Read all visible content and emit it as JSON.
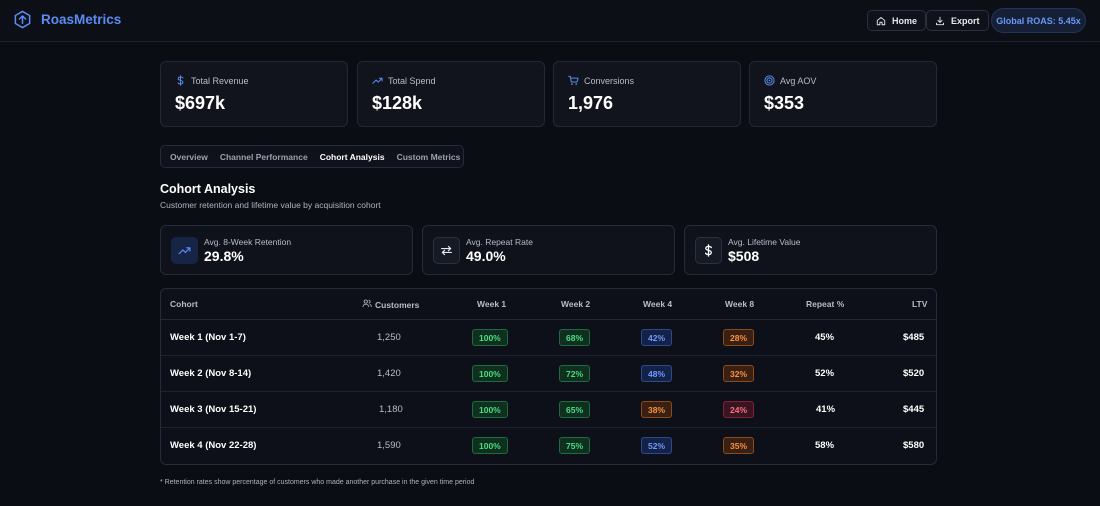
{
  "header": {
    "brand": "RoasMetrics",
    "home_label": "Home",
    "export_label": "Export",
    "roas_label": "Global ROAS: 5.45x"
  },
  "kpis": [
    {
      "label": "Total Revenue",
      "value": "$697k",
      "icon": "dollar-icon"
    },
    {
      "label": "Total Spend",
      "value": "$128k",
      "icon": "trending-up-icon"
    },
    {
      "label": "Conversions",
      "value": "1,976",
      "icon": "cart-icon"
    },
    {
      "label": "Avg AOV",
      "value": "$353",
      "icon": "target-icon"
    }
  ],
  "tabs": [
    "Overview",
    "Channel Performance",
    "Cohort Analysis",
    "Custom Metrics"
  ],
  "active_tab": "Cohort Analysis",
  "section": {
    "title": "Cohort Analysis",
    "subtitle": "Customer retention and lifetime value by acquisition cohort"
  },
  "stats": [
    {
      "label": "Avg. 8-Week Retention",
      "value": "29.8%",
      "icon": "trending-up-icon"
    },
    {
      "label": "Avg. Repeat Rate",
      "value": "49.0%",
      "icon": "repeat-icon"
    },
    {
      "label": "Avg. Lifetime Value",
      "value": "$508",
      "icon": "dollar-icon"
    }
  ],
  "table": {
    "headers": {
      "cohort": "Cohort",
      "customers": "Customers",
      "week1": "Week 1",
      "week2": "Week 2",
      "week4": "Week 4",
      "week8": "Week 8",
      "repeat": "Repeat %",
      "ltv": "LTV"
    },
    "rows": [
      {
        "cohort": "Week 1 (Nov 1-7)",
        "customers": "1,250",
        "week1": "100%",
        "week2": "68%",
        "week4": "42%",
        "week8": "28%",
        "repeat": "45%",
        "ltv": "$485"
      },
      {
        "cohort": "Week 2 (Nov 8-14)",
        "customers": "1,420",
        "week1": "100%",
        "week2": "72%",
        "week4": "48%",
        "week8": "32%",
        "repeat": "52%",
        "ltv": "$520"
      },
      {
        "cohort": "Week 3 (Nov 15-21)",
        "customers": "1,180",
        "week1": "100%",
        "week2": "65%",
        "week4": "38%",
        "week8": "24%",
        "repeat": "41%",
        "ltv": "$445"
      },
      {
        "cohort": "Week 4 (Nov 22-28)",
        "customers": "1,590",
        "week1": "100%",
        "week2": "75%",
        "week4": "52%",
        "week8": "35%",
        "repeat": "58%",
        "ltv": "$580"
      }
    ]
  },
  "footnote": "* Retention rates show percentage of customers who made another purchase in the given time period",
  "colors": {
    "accent": "#5b8cf2",
    "green": "#4ade80",
    "blue": "#6f9bff",
    "orange": "#fb923c",
    "red": "#fb7185"
  }
}
